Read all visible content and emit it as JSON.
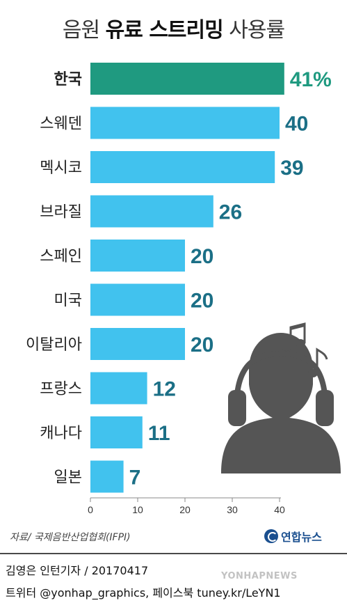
{
  "title": {
    "pre": "음원",
    "bold": "유료 스트리밍",
    "post": "사용률"
  },
  "chart_data": {
    "type": "bar",
    "orientation": "horizontal",
    "categories": [
      "한국",
      "스웨덴",
      "멕시코",
      "브라질",
      "스페인",
      "미국",
      "이탈리아",
      "프랑스",
      "캐나다",
      "일본"
    ],
    "values": [
      41,
      40,
      39,
      26,
      20,
      20,
      20,
      12,
      11,
      7
    ],
    "value_labels": [
      "41%",
      "40",
      "39",
      "26",
      "20",
      "20",
      "20",
      "12",
      "11",
      "7"
    ],
    "highlight_index": 0,
    "xlim": [
      0,
      45
    ],
    "xticks": [
      0,
      10,
      20,
      30,
      40
    ],
    "grid": false,
    "colors": {
      "bar": "#41c2ee",
      "highlight": "#1f9a80",
      "label": "#1b6f86",
      "highlight_label": "#1f9a80"
    }
  },
  "source": "자료/ 국제음반산업협회(IFPI)",
  "logo": "연합뉴스",
  "credit": "김영은 인턴기자 / 20170417",
  "footer": "트위터 @yonhap_graphics, 페이스북 tuney.kr/LeYN1",
  "watermark": "YONHAPNEWS",
  "icons": [
    "music-note-icon",
    "headphones-person-icon"
  ]
}
